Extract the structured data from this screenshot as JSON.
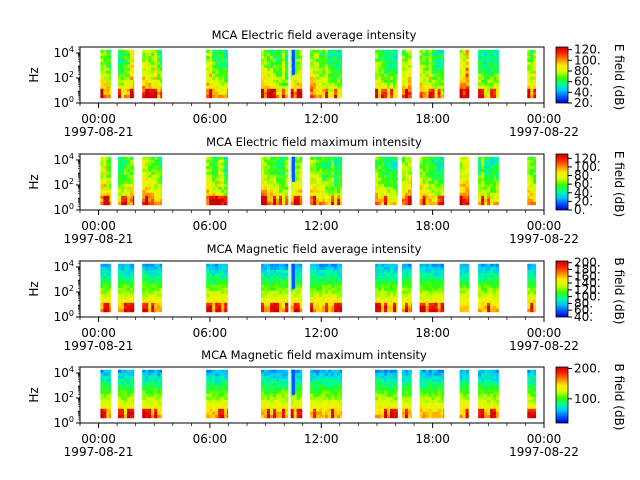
{
  "colors": {
    "gap": "#ffffff",
    "colormap": [
      "#0000cc",
      "#0055ff",
      "#00c8ff",
      "#00ff99",
      "#33ff00",
      "#ccff00",
      "#ffee00",
      "#ff8800",
      "#ff2200",
      "#cc0000"
    ]
  },
  "chart_data": [
    {
      "type": "heatmap",
      "title": "MCA  Electric field average intensity",
      "ylabel": "Hz",
      "y_scale": "log",
      "yticks": [
        {
          "value": 1,
          "base": "10",
          "exp": "0"
        },
        {
          "value": 100,
          "base": "10",
          "exp": "2"
        },
        {
          "value": 10000,
          "base": "10",
          "exp": "4"
        }
      ],
      "ylim": [
        1,
        30000
      ],
      "x_hour_range": [
        -1,
        24
      ],
      "xticks": [
        {
          "hour": 0,
          "time": "00:00",
          "date": "1997-08-21"
        },
        {
          "hour": 6,
          "time": "06:00",
          "date": ""
        },
        {
          "hour": 12,
          "time": "12:00",
          "date": ""
        },
        {
          "hour": 18,
          "time": "18:00",
          "date": ""
        },
        {
          "hour": 24,
          "time": "00:00",
          "date": "1997-08-22"
        }
      ],
      "colorbar": {
        "label": "E field (dB)",
        "range": [
          20,
          125
        ],
        "ticks": [
          "20.",
          "40.",
          "60.",
          "80.",
          "100.",
          "120."
        ],
        "tick_values": [
          20,
          40,
          60,
          80,
          100,
          120
        ]
      },
      "data_hour_ranges": [
        [
          0.1,
          0.65
        ],
        [
          1.05,
          1.9
        ],
        [
          2.35,
          3.4
        ],
        [
          5.8,
          6.95
        ],
        [
          8.75,
          10.2
        ],
        [
          10.35,
          10.95
        ],
        [
          11.4,
          13.1
        ],
        [
          14.9,
          16.1
        ],
        [
          16.35,
          16.85
        ],
        [
          17.3,
          18.6
        ],
        [
          19.45,
          19.95
        ],
        [
          20.45,
          21.55
        ],
        [
          23.1,
          23.55
        ]
      ],
      "level_range_db": [
        30,
        110
      ]
    },
    {
      "type": "heatmap",
      "title": "MCA  Electric field maximum intensity",
      "ylabel": "Hz",
      "y_scale": "log",
      "yticks": [
        {
          "value": 1,
          "base": "10",
          "exp": "0"
        },
        {
          "value": 100,
          "base": "10",
          "exp": "2"
        },
        {
          "value": 10000,
          "base": "10",
          "exp": "4"
        }
      ],
      "ylim": [
        1,
        30000
      ],
      "x_hour_range": [
        -1,
        24
      ],
      "xticks": [
        {
          "hour": 0,
          "time": "00:00",
          "date": "1997-08-21"
        },
        {
          "hour": 6,
          "time": "06:00",
          "date": ""
        },
        {
          "hour": 12,
          "time": "12:00",
          "date": ""
        },
        {
          "hour": 18,
          "time": "18:00",
          "date": ""
        },
        {
          "hour": 24,
          "time": "00:00",
          "date": "1997-08-22"
        }
      ],
      "colorbar": {
        "label": "E field (dB)",
        "range": [
          0,
          130
        ],
        "ticks": [
          "0.",
          "20.",
          "40.",
          "60.",
          "80.",
          "100.",
          "120."
        ],
        "tick_values": [
          0,
          20,
          40,
          60,
          80,
          100,
          120
        ]
      },
      "data_hour_ranges": [
        [
          0.1,
          0.65
        ],
        [
          1.05,
          1.9
        ],
        [
          2.35,
          3.4
        ],
        [
          5.8,
          6.95
        ],
        [
          8.75,
          10.2
        ],
        [
          10.35,
          10.95
        ],
        [
          11.4,
          13.1
        ],
        [
          14.9,
          16.1
        ],
        [
          16.35,
          16.85
        ],
        [
          17.3,
          18.6
        ],
        [
          19.45,
          19.95
        ],
        [
          20.45,
          21.55
        ],
        [
          23.1,
          23.55
        ]
      ],
      "level_range_db": [
        40,
        120
      ]
    },
    {
      "type": "heatmap",
      "title": "MCA  Magnetic field average intensity",
      "ylabel": "Hz",
      "y_scale": "log",
      "yticks": [
        {
          "value": 1,
          "base": "10",
          "exp": "0"
        },
        {
          "value": 100,
          "base": "10",
          "exp": "2"
        },
        {
          "value": 10000,
          "base": "10",
          "exp": "4"
        }
      ],
      "ylim": [
        1,
        30000
      ],
      "x_hour_range": [
        -1,
        24
      ],
      "xticks": [
        {
          "hour": 0,
          "time": "00:00",
          "date": "1997-08-21"
        },
        {
          "hour": 6,
          "time": "06:00",
          "date": ""
        },
        {
          "hour": 12,
          "time": "12:00",
          "date": ""
        },
        {
          "hour": 18,
          "time": "18:00",
          "date": ""
        },
        {
          "hour": 24,
          "time": "00:00",
          "date": "1997-08-22"
        }
      ],
      "colorbar": {
        "label": "B field (dB)",
        "range": [
          40,
          205
        ],
        "ticks": [
          "40.",
          "60.",
          "80.",
          "100.",
          "120.",
          "140.",
          "160.",
          "180.",
          "200."
        ],
        "tick_values": [
          40,
          60,
          80,
          100,
          120,
          140,
          160,
          180,
          200
        ]
      },
      "data_hour_ranges": [
        [
          0.1,
          0.65
        ],
        [
          1.05,
          1.9
        ],
        [
          2.35,
          3.4
        ],
        [
          5.8,
          6.95
        ],
        [
          8.75,
          10.2
        ],
        [
          10.35,
          10.95
        ],
        [
          11.4,
          13.1
        ],
        [
          14.9,
          16.1
        ],
        [
          16.35,
          16.85
        ],
        [
          17.3,
          18.6
        ],
        [
          19.45,
          19.95
        ],
        [
          20.45,
          21.55
        ],
        [
          23.1,
          23.55
        ]
      ],
      "level_range_db": [
        60,
        180
      ]
    },
    {
      "type": "heatmap",
      "title": "MCA  Magnetic field maximum intensity",
      "ylabel": "Hz",
      "y_scale": "log",
      "yticks": [
        {
          "value": 1,
          "base": "10",
          "exp": "0"
        },
        {
          "value": 100,
          "base": "10",
          "exp": "2"
        },
        {
          "value": 10000,
          "base": "10",
          "exp": "4"
        }
      ],
      "ylim": [
        1,
        30000
      ],
      "x_hour_range": [
        -1,
        24
      ],
      "xticks": [
        {
          "hour": 0,
          "time": "00:00",
          "date": "1997-08-21"
        },
        {
          "hour": 6,
          "time": "06:00",
          "date": ""
        },
        {
          "hour": 12,
          "time": "12:00",
          "date": ""
        },
        {
          "hour": 18,
          "time": "18:00",
          "date": ""
        },
        {
          "hour": 24,
          "time": "00:00",
          "date": "1997-08-22"
        }
      ],
      "colorbar": {
        "label": "B field (dB)",
        "range": [
          20,
          205
        ],
        "ticks": [
          "100.",
          "200."
        ],
        "tick_values": [
          100,
          200
        ]
      },
      "data_hour_ranges": [
        [
          0.1,
          0.65
        ],
        [
          1.05,
          1.9
        ],
        [
          2.35,
          3.4
        ],
        [
          5.8,
          6.95
        ],
        [
          8.75,
          10.2
        ],
        [
          10.35,
          10.95
        ],
        [
          11.4,
          13.1
        ],
        [
          14.9,
          16.1
        ],
        [
          16.35,
          16.85
        ],
        [
          17.3,
          18.6
        ],
        [
          19.45,
          19.95
        ],
        [
          20.45,
          21.55
        ],
        [
          23.1,
          23.55
        ]
      ],
      "level_range_db": [
        70,
        190
      ]
    }
  ]
}
